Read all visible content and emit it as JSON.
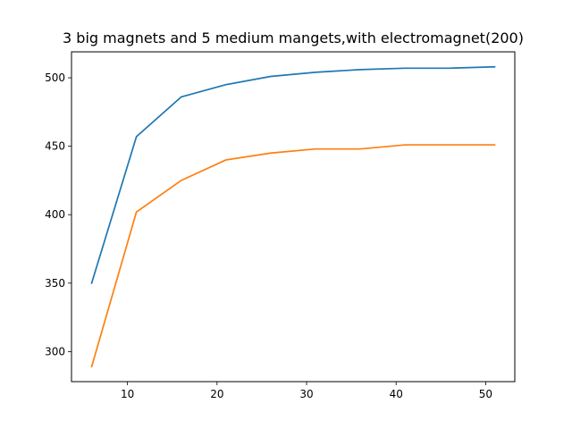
{
  "chart_data": {
    "type": "line",
    "title": "3 big magnets and 5 medium mangets,with electromagnet(200)",
    "xlabel": "",
    "ylabel": "",
    "x": [
      6,
      11,
      16,
      21,
      26,
      31,
      36,
      41,
      46,
      51
    ],
    "xlim": [
      3.75,
      53.25
    ],
    "ylim": [
      278.05,
      518.95
    ],
    "xticks": [
      10,
      20,
      30,
      40,
      50
    ],
    "yticks": [
      300,
      350,
      400,
      450,
      500
    ],
    "grid": false,
    "legend": "none",
    "series": [
      {
        "color": "#1f77b4",
        "values": [
          350,
          457,
          486,
          495,
          501,
          504,
          506,
          507,
          507,
          508
        ]
      },
      {
        "color": "#ff7f0e",
        "values": [
          289,
          402,
          425,
          440,
          445,
          448,
          448,
          451,
          451,
          451
        ]
      }
    ]
  }
}
